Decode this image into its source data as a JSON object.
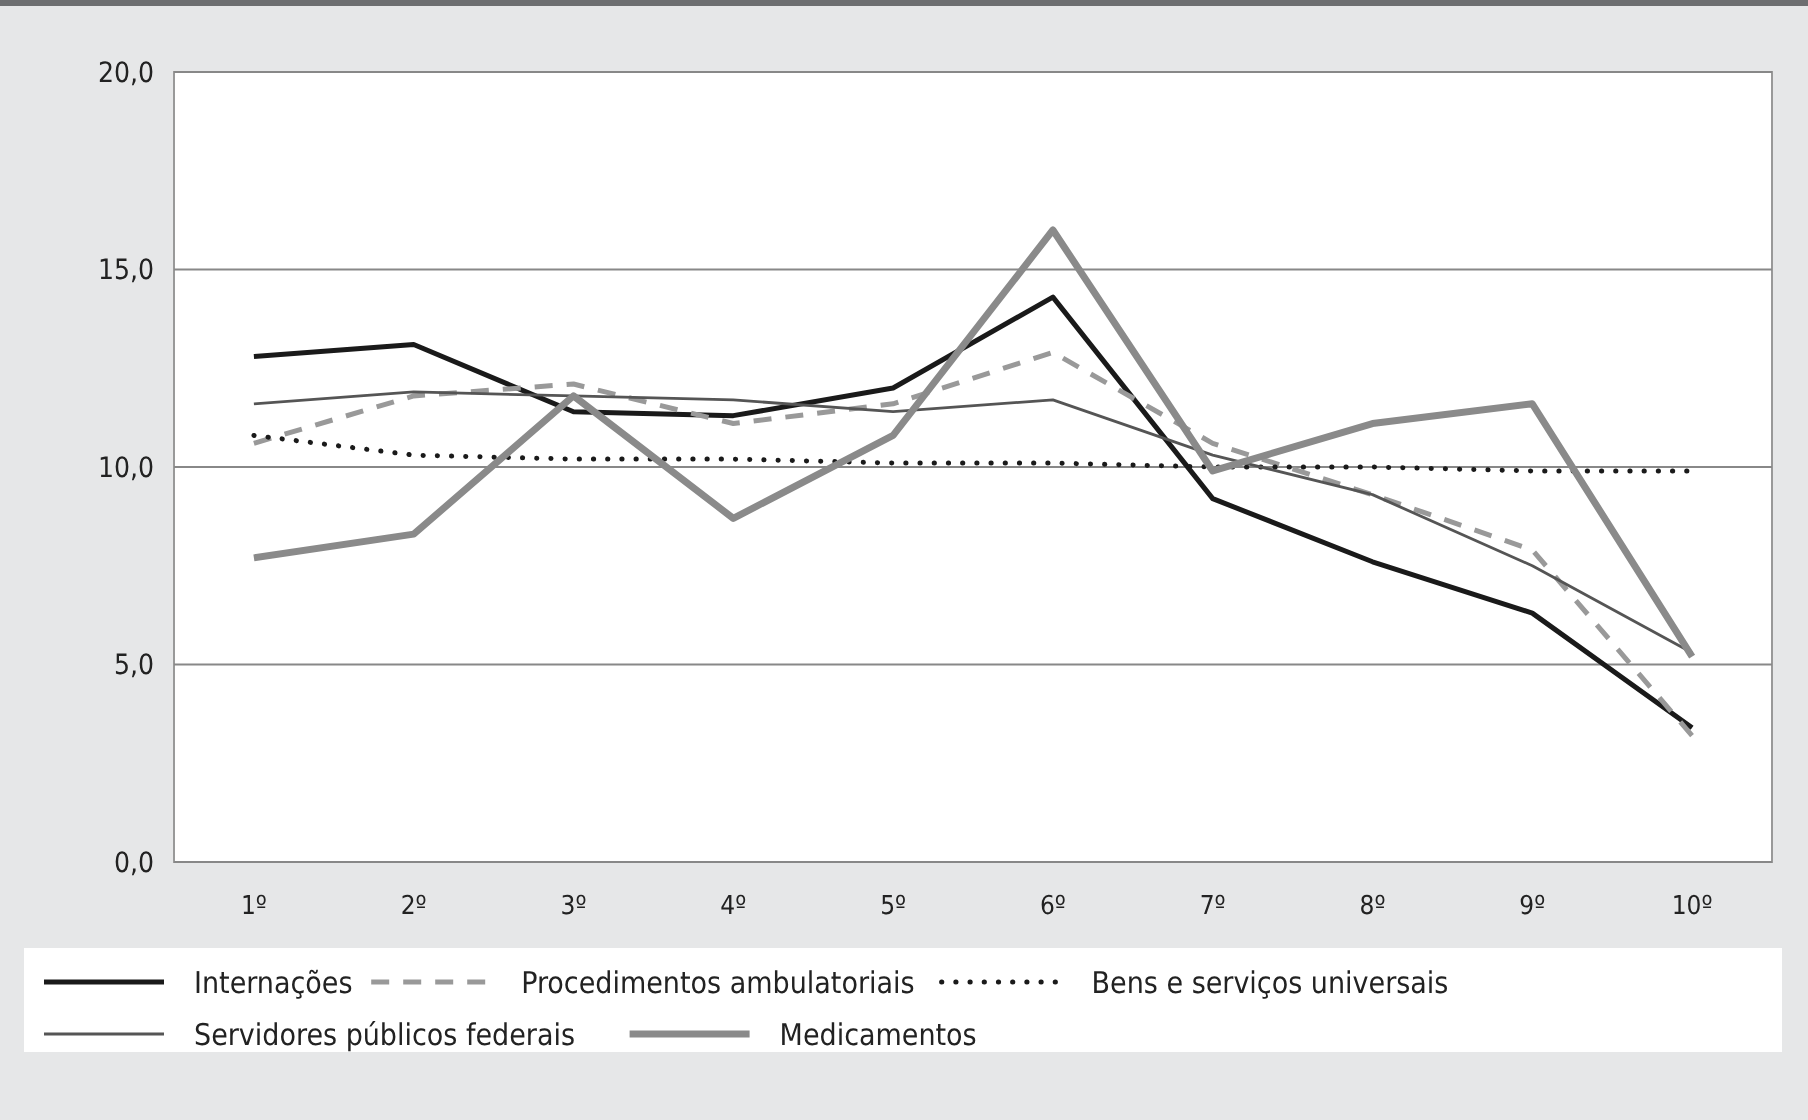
{
  "chart_data": {
    "type": "line",
    "categories": [
      "1º",
      "2º",
      "3º",
      "4º",
      "5º",
      "6º",
      "7º",
      "8º",
      "9º",
      "10º"
    ],
    "ylim": [
      0,
      20
    ],
    "yticks": [
      {
        "value": 0,
        "label": "0,0"
      },
      {
        "value": 5,
        "label": "5,0"
      },
      {
        "value": 10,
        "label": "10,0"
      },
      {
        "value": 15,
        "label": "15,0"
      },
      {
        "value": 20,
        "label": "20,0"
      }
    ],
    "grid": "y",
    "legend": "bottom",
    "series": [
      {
        "name": "Internações",
        "color": "#1a1a1a",
        "line_style": "solid",
        "values": [
          12.8,
          13.1,
          11.4,
          11.3,
          12.0,
          14.3,
          9.2,
          7.6,
          6.3,
          3.4
        ]
      },
      {
        "name": "Procedimentos ambulatoriais",
        "color": "#999999",
        "line_style": "dashed",
        "values": [
          10.6,
          11.8,
          12.1,
          11.1,
          11.6,
          12.9,
          10.6,
          9.3,
          7.9,
          3.2
        ]
      },
      {
        "name": "Bens e serviços universais",
        "color": "#1a1a1a",
        "line_style": "dotted",
        "values": [
          10.8,
          10.3,
          10.2,
          10.2,
          10.1,
          10.1,
          10.0,
          10.0,
          9.9,
          9.9
        ]
      },
      {
        "name": "Servidores públicos federais",
        "color": "#555555",
        "line_style": "solid",
        "values": [
          11.6,
          11.9,
          11.8,
          11.7,
          11.4,
          11.7,
          10.3,
          9.3,
          7.5,
          5.3
        ]
      },
      {
        "name": "Medicamentos",
        "color": "#8a8a8a",
        "line_style": "solid",
        "values": [
          7.7,
          8.3,
          11.8,
          8.7,
          10.8,
          16.0,
          9.9,
          11.1,
          11.6,
          5.2
        ]
      }
    ]
  }
}
